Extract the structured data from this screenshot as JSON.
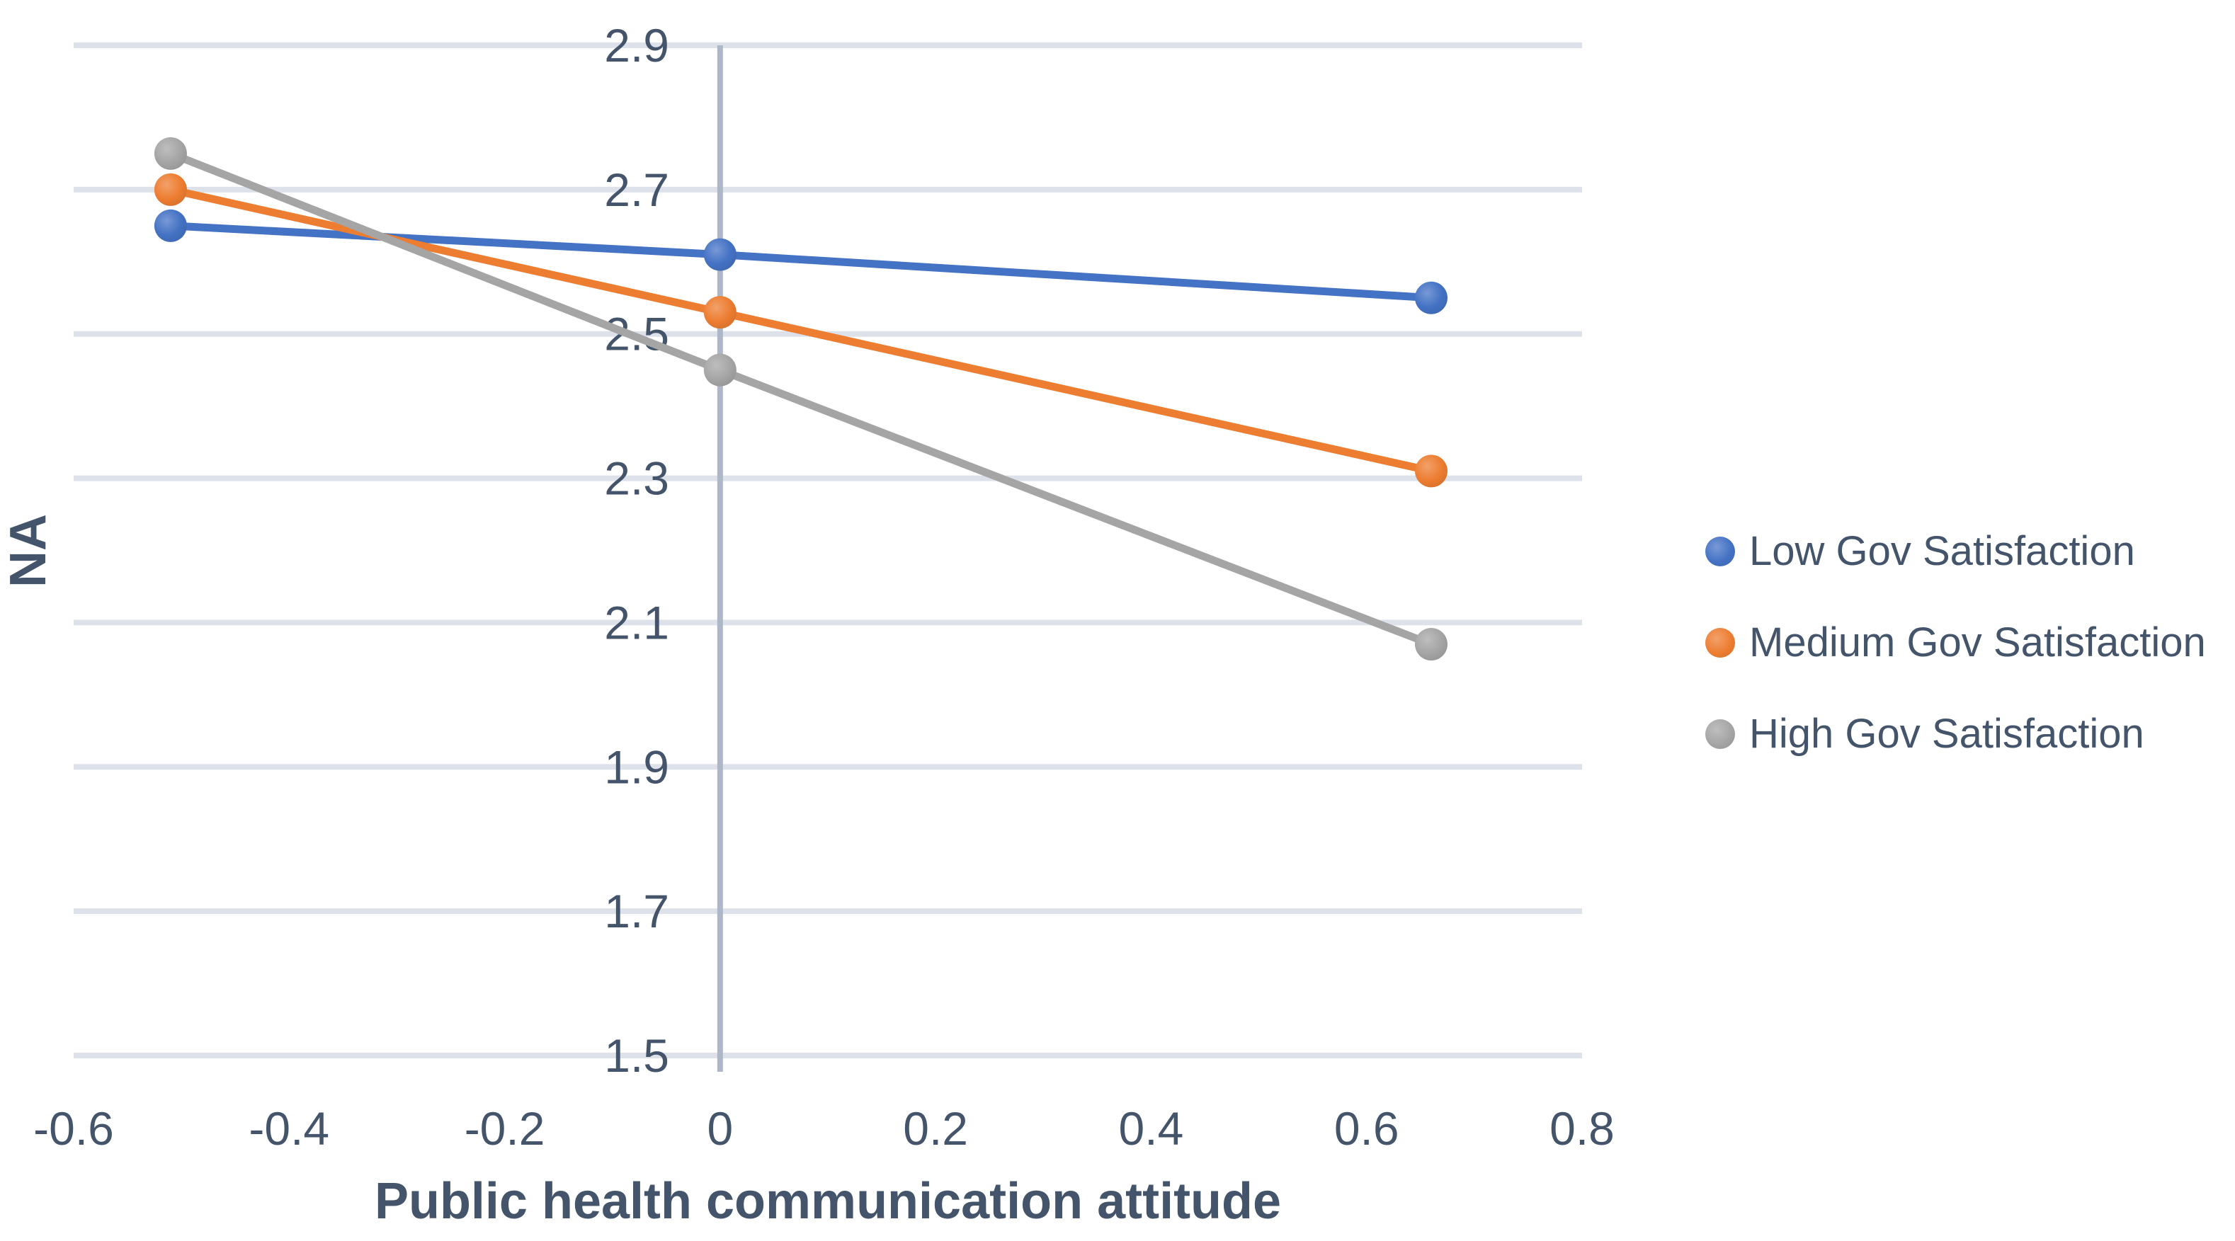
{
  "chart_data": {
    "type": "line",
    "title": "",
    "xlabel": "Public health communication attitude",
    "ylabel": "NA",
    "xlim": [
      -0.6,
      0.8
    ],
    "ylim": [
      1.5,
      2.9
    ],
    "x_tick_values": [
      -0.6,
      -0.4,
      -0.2,
      0,
      0.2,
      0.4,
      0.6,
      0.8
    ],
    "x_tick_labels": [
      "-0.6",
      "-0.4",
      "-0.2",
      "0",
      "0.2",
      "0.4",
      "0.6",
      "0.8"
    ],
    "y_tick_values": [
      2.9,
      2.7,
      2.5,
      2.3,
      2.1,
      1.9,
      1.7,
      1.5
    ],
    "y_tick_labels": [
      "2.9",
      "2.7",
      "2.5",
      "2.3",
      "2.1",
      "1.9",
      "1.7",
      "1.5"
    ],
    "grid": "horizontal",
    "vertical_axis_at_x": 0,
    "legend_position": "right",
    "x": [
      -0.51,
      0,
      0.66
    ],
    "series": [
      {
        "name": "Low Gov Satisfaction",
        "color": "#4472C4",
        "values": [
          2.65,
          2.61,
          2.55
        ]
      },
      {
        "name": "Medium Gov Satisfaction",
        "color": "#ED7D31",
        "values": [
          2.7,
          2.53,
          2.31
        ]
      },
      {
        "name": "High Gov Satisfaction",
        "color": "#A5A5A5",
        "values": [
          2.75,
          2.45,
          2.07
        ]
      }
    ],
    "colors": {
      "text": "#44546A",
      "gridline": "#DDE2EA",
      "axis_line": "#AEB7C8",
      "background": "#FFFFFF"
    }
  }
}
